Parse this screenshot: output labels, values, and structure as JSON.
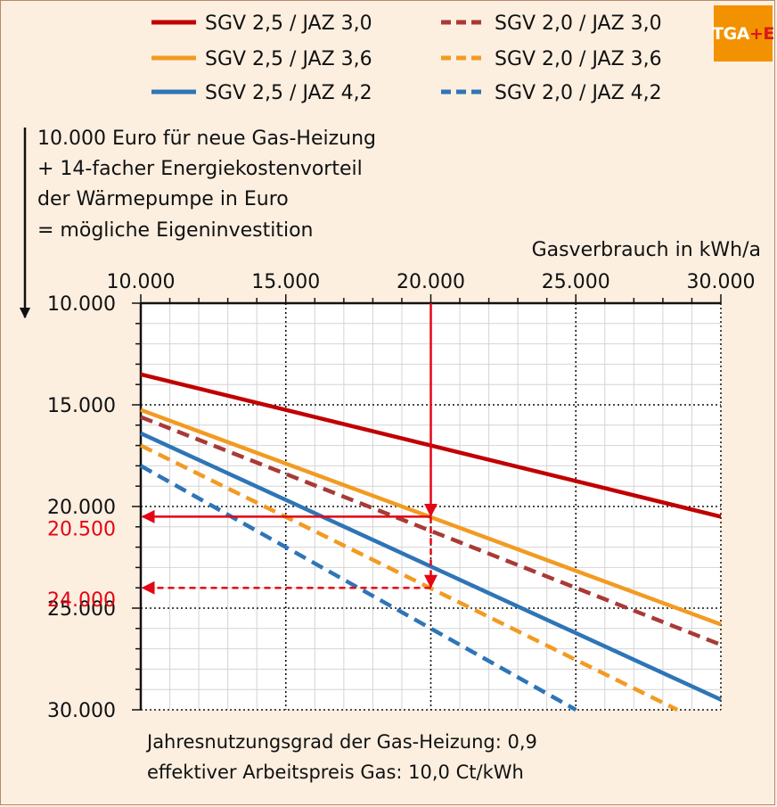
{
  "brand": {
    "logo_text_main": "TGA",
    "logo_text_accent": "+E"
  },
  "description": [
    "10.000 Euro für neue Gas-Heizung",
    "+ 14-facher Energiekostenvorteil",
    "der Wärmepumpe in Euro",
    "= mögliche Eigeninvestition"
  ],
  "footnotes": [
    "Jahresnutzungsgrad der Gas-Heizung: 0,9",
    "effektiver Arbeitspreis Gas: 10,0 Ct/kWh"
  ],
  "chart_data": {
    "type": "line",
    "title": "",
    "xlabel": "Gasverbrauch in kWh/a",
    "ylabel": "10.000 Euro für neue Gas-Heizung + 14-facher Energiekostenvorteil der Wärmepumpe in Euro = mögliche Eigeninvestition",
    "x_axis_position": "top",
    "y_axis_inverted": true,
    "xlim": [
      10000,
      30000
    ],
    "ylim": [
      10000,
      30000
    ],
    "x_ticks": [
      10000,
      15000,
      20000,
      25000,
      30000
    ],
    "x_tick_labels": [
      "10.000",
      "15.000",
      "20.000",
      "25.000",
      "30.000"
    ],
    "y_ticks": [
      10000,
      15000,
      20000,
      25000,
      30000
    ],
    "y_tick_labels": [
      "10.000",
      "15.000",
      "20.000",
      "25.000",
      "30.000"
    ],
    "grid": true,
    "legend_position": "top",
    "series": [
      {
        "name": "SGV 2,5 / JAZ 3,0",
        "color": "#c00000",
        "dash": "solid",
        "x": [
          10000,
          30000
        ],
        "y": [
          13500,
          20500
        ]
      },
      {
        "name": "SGV 2,0 / JAZ 3,0",
        "color": "#a83a36",
        "dash": "dashed",
        "x": [
          10000,
          30000
        ],
        "y": [
          15600,
          26800
        ]
      },
      {
        "name": "SGV 2,5 / JAZ 3,6",
        "color": "#f29b22",
        "dash": "solid",
        "x": [
          10000,
          30000
        ],
        "y": [
          15250,
          25800
        ]
      },
      {
        "name": "SGV 2,0 / JAZ 3,6",
        "color": "#f29b22",
        "dash": "dashed",
        "x": [
          10000,
          28500
        ],
        "y": [
          17000,
          30000
        ]
      },
      {
        "name": "SGV 2,5 / JAZ 4,2",
        "color": "#2e75b6",
        "dash": "solid",
        "x": [
          10000,
          30000
        ],
        "y": [
          16400,
          29500
        ]
      },
      {
        "name": "SGV 2,0 / JAZ 4,2",
        "color": "#2e75b6",
        "dash": "dashed",
        "x": [
          10000,
          25000
        ],
        "y": [
          18000,
          30000
        ]
      }
    ],
    "annotations": [
      {
        "label": "20.500",
        "color": "#e30613",
        "style": "solid",
        "x": 20000,
        "y": 20500
      },
      {
        "label": "24.000",
        "color": "#e30613",
        "style": "dashed",
        "x": 20000,
        "y": 24000
      }
    ]
  }
}
